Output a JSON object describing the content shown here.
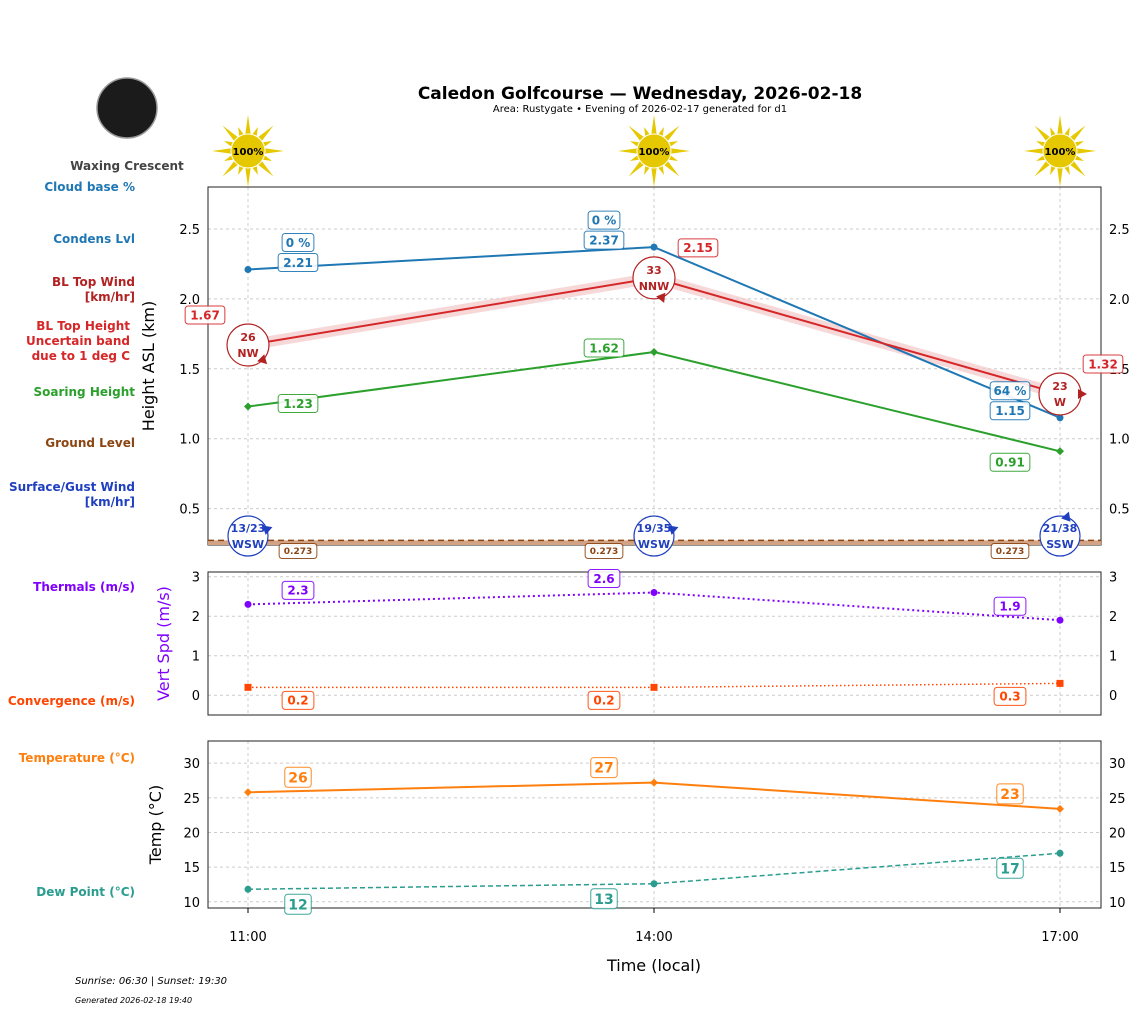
{
  "title": "Caledon Golfcourse — Wednesday, 2026-02-18",
  "subtitle": "Area: Rustygate • Evening of 2026-02-17 generated for d1",
  "moon_phase": "Waxing Crescent",
  "footer": {
    "sun": "Sunrise: 06:30 | Sunset: 19:30",
    "generated": "Generated 2026-02-18 19:40"
  },
  "colors": {
    "condens": "#1f77b4",
    "bl_top": "#d62728",
    "bl_wind": "#b22222",
    "soaring": "#2ca02c",
    "ground": "#8b4513",
    "surface_wind": "#1f3fbf",
    "thermals": "#8000ff",
    "convergence": "#ff4500",
    "temperature": "#ff7f0e",
    "dew_point": "#2a9d8f",
    "sun": "#e6c800"
  },
  "chart_data": [
    {
      "type": "line",
      "ylabel": "Height ASL (km)",
      "ylim": [
        0.24,
        2.8
      ],
      "yticks": [
        "0.5",
        "1.0",
        "1.5",
        "2.0",
        "2.5"
      ],
      "x": [
        "11:00",
        "14:00",
        "17:00"
      ],
      "grid": true,
      "sun_percent": [
        "100%",
        "100%",
        "100%"
      ],
      "row_labels": [
        "Cloud base %",
        "Condens Lvl",
        "BL Top Wind\n[km/hr]",
        "BL Top Height\nUncertain band\ndue to 1 deg C",
        "Soaring Height",
        "Ground Level",
        "Surface/Gust Wind\n[km/hr]"
      ],
      "series": [
        {
          "key": "condens",
          "values": [
            2.21,
            2.37,
            1.15
          ],
          "labels": [
            "2.21",
            "2.37",
            "1.15"
          ],
          "cloud_base_pct": [
            "0 %",
            "0 %",
            "64 %"
          ]
        },
        {
          "key": "bl_top",
          "values": [
            1.67,
            2.15,
            1.32
          ],
          "labels": [
            "1.67",
            "2.15",
            "1.32"
          ],
          "band": 0.04
        },
        {
          "key": "soaring",
          "values": [
            1.23,
            1.62,
            0.91
          ],
          "labels": [
            "1.23",
            "1.62",
            "0.91"
          ]
        },
        {
          "key": "ground",
          "values": [
            0.273,
            0.273,
            0.273
          ],
          "labels": [
            "0.273",
            "0.273",
            "0.273"
          ]
        }
      ],
      "bl_wind": [
        {
          "speed": "26",
          "dir": "NW"
        },
        {
          "speed": "33",
          "dir": "NNW"
        },
        {
          "speed": "23",
          "dir": "W"
        }
      ],
      "surface_wind": [
        {
          "speed": "13/23",
          "dir": "WSW"
        },
        {
          "speed": "19/35",
          "dir": "WSW"
        },
        {
          "speed": "21/38",
          "dir": "SSW"
        }
      ]
    },
    {
      "type": "line",
      "ylabel": "Vert Spd (m/s)",
      "ylim": [
        -0.5,
        3.12
      ],
      "yticks": [
        "0",
        "1",
        "2",
        "3"
      ],
      "x": [
        "11:00",
        "14:00",
        "17:00"
      ],
      "grid": true,
      "row_labels": [
        "Thermals (m/s)",
        "Convergence (m/s)"
      ],
      "series": [
        {
          "key": "thermals",
          "values": [
            2.3,
            2.6,
            1.9
          ],
          "labels": [
            "2.3",
            "2.6",
            "1.9"
          ]
        },
        {
          "key": "convergence",
          "values": [
            0.2,
            0.2,
            0.3
          ],
          "labels": [
            "0.2",
            "0.2",
            "0.3"
          ]
        }
      ]
    },
    {
      "type": "line",
      "ylabel": "Temp (°C)",
      "xlabel": "Time (local)",
      "ylim": [
        9.1,
        33.2
      ],
      "yticks": [
        "10",
        "15",
        "20",
        "25",
        "30"
      ],
      "x": [
        "11:00",
        "14:00",
        "17:00"
      ],
      "grid": true,
      "row_labels": [
        "Temperature (°C)",
        "Dew Point (°C)"
      ],
      "series": [
        {
          "key": "temperature",
          "values": [
            25.8,
            27.2,
            23.4
          ],
          "labels": [
            "26",
            "27",
            "23"
          ]
        },
        {
          "key": "dew_point",
          "values": [
            11.8,
            12.6,
            17.0
          ],
          "labels": [
            "12",
            "13",
            "17"
          ]
        }
      ]
    }
  ]
}
